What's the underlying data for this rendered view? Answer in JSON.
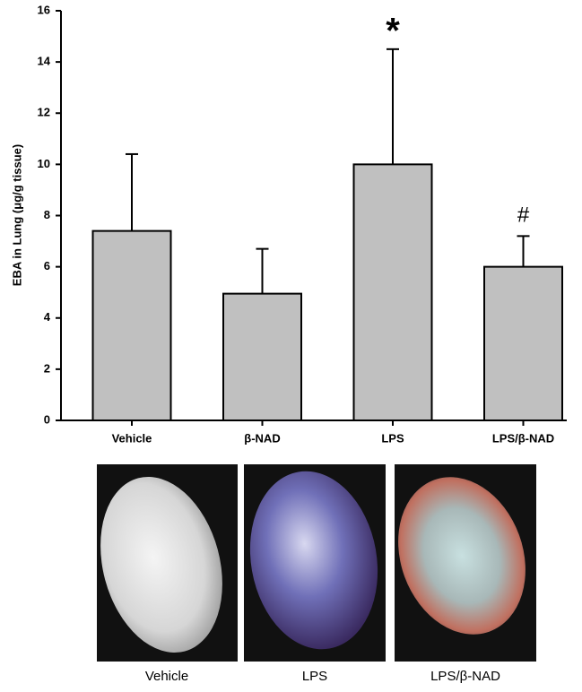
{
  "chart_data": {
    "type": "bar",
    "y_label": "EBA in Lung (μg/g tissue)",
    "categories": [
      "Vehicle",
      "β-NAD",
      "LPS",
      "LPS/β-NAD"
    ],
    "values": [
      7.4,
      4.95,
      10.0,
      6.0
    ],
    "errors": [
      3.0,
      1.75,
      4.5,
      1.2
    ],
    "color": "#c0c0c0",
    "ylim": [
      0,
      16
    ],
    "yticks": [
      0,
      2,
      4,
      6,
      8,
      10,
      12,
      14,
      16
    ],
    "annotations": [
      {
        "text": "*",
        "category": "LPS"
      },
      {
        "text": "#",
        "category": "LPS/β-NAD"
      }
    ]
  },
  "photos": {
    "captions": [
      "Vehicle",
      "LPS",
      "LPS/β-NAD"
    ]
  }
}
